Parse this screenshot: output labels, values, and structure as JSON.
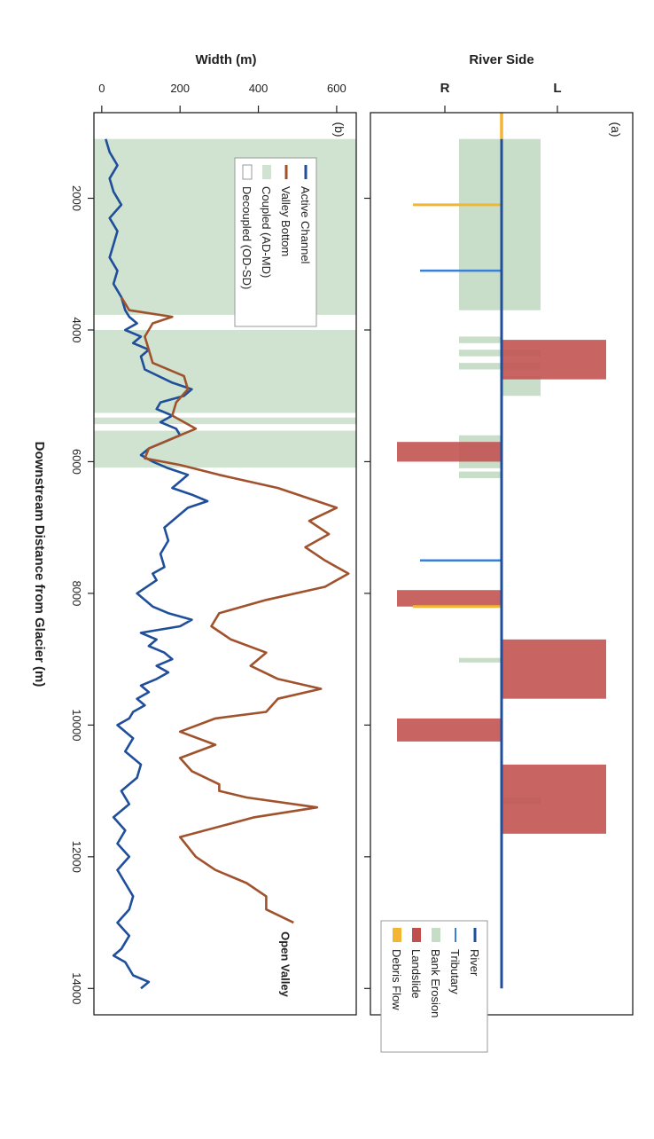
{
  "colors": {
    "river": "#1f4e9a",
    "tributary": "#3a7fd8",
    "bank_erosion": "#c5dcc6",
    "landslide": "#c0504d",
    "debris_flow": "#f2b632",
    "active_channel": "#1f4e9a",
    "valley_bottom": "#a0522d",
    "coupled": "#cfe3d0",
    "decoupled": "#ffffff"
  },
  "x_axis_title": "Downstream Distance from Glacier (m)",
  "chart_data": [
    {
      "type": "bar",
      "panel": "(a)",
      "ylabel": "River Side",
      "side_ticks": [
        "R",
        "L"
      ],
      "xlim": [
        700,
        14400
      ],
      "xticks": [
        2000,
        4000,
        6000,
        8000,
        10000,
        12000,
        14000
      ],
      "legend": [
        {
          "name": "River",
          "kind": "river"
        },
        {
          "name": "Tributary",
          "kind": "tributary"
        },
        {
          "name": "Bank Erosion",
          "kind": "bank_erosion"
        },
        {
          "name": "Landslide",
          "kind": "landslide"
        },
        {
          "name": "Debris Flow",
          "kind": "debris_flow"
        }
      ],
      "river": {
        "x_start": 1100,
        "x_end": 14000
      },
      "bank_erosion": [
        {
          "start": 1100,
          "end": 3700,
          "side": "both"
        },
        {
          "start": 4100,
          "end": 4200,
          "side": "R"
        },
        {
          "start": 4300,
          "end": 4400,
          "side": "both"
        },
        {
          "start": 4500,
          "end": 4600,
          "side": "both"
        },
        {
          "start": 4700,
          "end": 5000,
          "side": "L"
        },
        {
          "start": 5600,
          "end": 6000,
          "side": "R"
        },
        {
          "start": 6000,
          "end": 6100,
          "side": "R"
        },
        {
          "start": 6150,
          "end": 6250,
          "side": "R"
        },
        {
          "start": 8980,
          "end": 9050,
          "side": "R"
        },
        {
          "start": 11100,
          "end": 11200,
          "side": "L"
        }
      ],
      "landslides": [
        {
          "start": 4150,
          "end": 4750,
          "side": "L"
        },
        {
          "start": 5700,
          "end": 6000,
          "side": "R"
        },
        {
          "start": 7950,
          "end": 8200,
          "side": "R"
        },
        {
          "start": 8700,
          "end": 9600,
          "side": "L"
        },
        {
          "start": 9900,
          "end": 10250,
          "side": "R"
        },
        {
          "start": 10600,
          "end": 11650,
          "side": "L"
        }
      ],
      "tributaries": [
        {
          "x": 3100,
          "side": "R"
        },
        {
          "x": 7500,
          "side": "R"
        }
      ],
      "debris_flows": [
        {
          "x": 2100,
          "side": "R",
          "length": 1.0
        },
        {
          "x": 8200,
          "side": "R",
          "length": 1.0
        },
        {
          "x": 700,
          "side": "center",
          "length": 0.0
        }
      ]
    },
    {
      "type": "line",
      "panel": "(b)",
      "ylabel": "Width (m)",
      "xlabel": "Downstream Distance from Glacier (m)",
      "xlim": [
        700,
        14400
      ],
      "ylim": [
        -20,
        650
      ],
      "xticks": [
        2000,
        4000,
        6000,
        8000,
        10000,
        12000,
        14000
      ],
      "yticks": [
        0,
        200,
        400,
        600
      ],
      "legend": [
        {
          "name": "Active Channel",
          "kind": "line",
          "color_key": "active_channel"
        },
        {
          "name": "Valley Bottom",
          "kind": "line",
          "color_key": "valley_bottom"
        },
        {
          "name": "Coupled (AD-MD)",
          "kind": "box",
          "color_key": "coupled"
        },
        {
          "name": "Decoupled (OD-SD)",
          "kind": "box",
          "color_key": "decoupled"
        }
      ],
      "coupled_ranges": [
        [
          1100,
          3770
        ],
        [
          4000,
          5260
        ],
        [
          5330,
          5430
        ],
        [
          5530,
          6090
        ]
      ],
      "annotation": {
        "text": "Open Valley",
        "x": 13000,
        "y": 500
      },
      "series": [
        {
          "name": "Active Channel",
          "color_key": "active_channel",
          "x": [
            1100,
            1300,
            1500,
            1700,
            1900,
            2100,
            2300,
            2500,
            2700,
            2900,
            3100,
            3300,
            3500,
            3700,
            3800,
            3900,
            4000,
            4100,
            4200,
            4300,
            4400,
            4600,
            4800,
            4900,
            5000,
            5100,
            5200,
            5300,
            5400,
            5500,
            5600,
            5700,
            5800,
            5900,
            6000,
            6100,
            6200,
            6300,
            6400,
            6500,
            6600,
            6700,
            6800,
            7000,
            7200,
            7400,
            7600,
            7700,
            7800,
            8000,
            8100,
            8200,
            8300,
            8400,
            8500,
            8600,
            8700,
            8800,
            8900,
            9000,
            9100,
            9200,
            9300,
            9400,
            9500,
            9600,
            9700,
            9800,
            9900,
            10000,
            10200,
            10400,
            10600,
            10800,
            11000,
            11200,
            11400,
            11600,
            11800,
            12000,
            12200,
            12400,
            12600,
            12800,
            13000,
            13200,
            13400,
            13500,
            13600,
            13800,
            13900,
            14000
          ],
          "y": [
            10,
            20,
            40,
            20,
            30,
            50,
            20,
            40,
            30,
            20,
            40,
            30,
            50,
            60,
            70,
            90,
            60,
            100,
            80,
            120,
            100,
            110,
            180,
            230,
            210,
            150,
            140,
            180,
            150,
            190,
            200,
            160,
            120,
            100,
            130,
            170,
            220,
            200,
            180,
            230,
            270,
            220,
            200,
            160,
            170,
            150,
            160,
            130,
            140,
            90,
            110,
            130,
            170,
            230,
            200,
            100,
            140,
            120,
            160,
            180,
            140,
            170,
            140,
            100,
            120,
            90,
            110,
            80,
            70,
            40,
            80,
            60,
            100,
            90,
            50,
            70,
            30,
            60,
            40,
            70,
            40,
            60,
            80,
            70,
            40,
            70,
            50,
            30,
            60,
            80,
            120,
            100
          ]
        },
        {
          "name": "Valley Bottom",
          "color_key": "valley_bottom",
          "x": [
            3500,
            3700,
            3800,
            3900,
            4000,
            4100,
            4300,
            4500,
            4700,
            4900,
            5100,
            5300,
            5500,
            5600,
            5800,
            5950,
            6050,
            6200,
            6400,
            6700,
            6900,
            7100,
            7300,
            7500,
            7700,
            7900,
            8100,
            8300,
            8500,
            8700,
            8900,
            9100,
            9300,
            9450,
            9600,
            9800,
            9900,
            10100,
            10300,
            10500,
            10700,
            10900,
            11000,
            11100,
            11250,
            11400,
            11700,
            12000,
            12200,
            12400,
            12600,
            12800,
            13000
          ],
          "y": [
            50,
            70,
            180,
            130,
            120,
            110,
            120,
            130,
            210,
            220,
            190,
            180,
            240,
            200,
            120,
            110,
            200,
            300,
            450,
            600,
            530,
            580,
            520,
            570,
            630,
            570,
            420,
            300,
            280,
            330,
            420,
            380,
            450,
            560,
            450,
            420,
            290,
            200,
            290,
            200,
            230,
            300,
            300,
            370,
            550,
            390,
            200,
            240,
            290,
            370,
            420,
            420,
            490
          ]
        }
      ]
    }
  ]
}
